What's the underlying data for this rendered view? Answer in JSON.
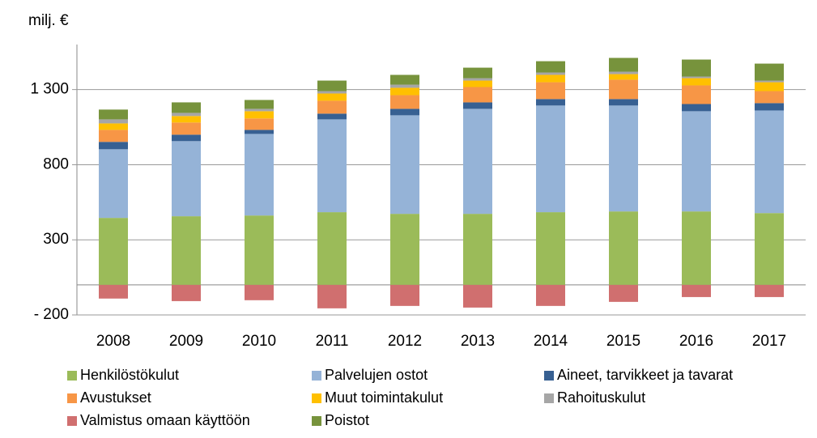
{
  "chart_data": {
    "type": "stacked_bar",
    "y_axis_label": "milj. €",
    "categories": [
      "2008",
      "2009",
      "2010",
      "2011",
      "2012",
      "2013",
      "2014",
      "2015",
      "2016",
      "2017"
    ],
    "series": [
      {
        "name": "Henkilöstökulut",
        "color": "#9bbb59",
        "values": [
          446,
          457,
          462,
          484,
          473,
          473,
          484,
          489,
          489,
          478
        ]
      },
      {
        "name": "Palvelujen ostot",
        "color": "#95b3d7",
        "values": [
          457,
          500,
          543,
          618,
          656,
          699,
          710,
          705,
          667,
          683
        ]
      },
      {
        "name": "Aineet, tarvikkeet ja tavarat",
        "color": "#376092",
        "values": [
          49,
          43,
          27,
          38,
          43,
          43,
          43,
          43,
          48,
          49
        ]
      },
      {
        "name": "Avustukset",
        "color": "#f79646",
        "values": [
          80,
          81,
          76,
          86,
          91,
          102,
          112,
          129,
          124,
          80
        ]
      },
      {
        "name": "Muut toimintakulut",
        "color": "#ffc000",
        "values": [
          43,
          43,
          48,
          48,
          49,
          43,
          49,
          37,
          48,
          59
        ]
      },
      {
        "name": "Rahoituskulut",
        "color": "#a6a6a6",
        "values": [
          27,
          21,
          16,
          16,
          21,
          16,
          16,
          16,
          11,
          11
        ]
      },
      {
        "name": "Valmistus omaan käyttöön",
        "color": "#d06f6f",
        "values": [
          -91,
          -108,
          -102,
          -156,
          -140,
          -151,
          -140,
          -113,
          -81,
          -81
        ]
      },
      {
        "name": "Poistot",
        "color": "#77933c",
        "values": [
          65,
          70,
          59,
          70,
          65,
          70,
          75,
          92,
          113,
          113
        ]
      }
    ],
    "ylim": [
      -200,
      1600
    ],
    "yticks": [
      {
        "value": -200,
        "label": "- 200"
      },
      300,
      800,
      {
        "value": 1300,
        "label": "1 300"
      }
    ],
    "grid": true
  }
}
